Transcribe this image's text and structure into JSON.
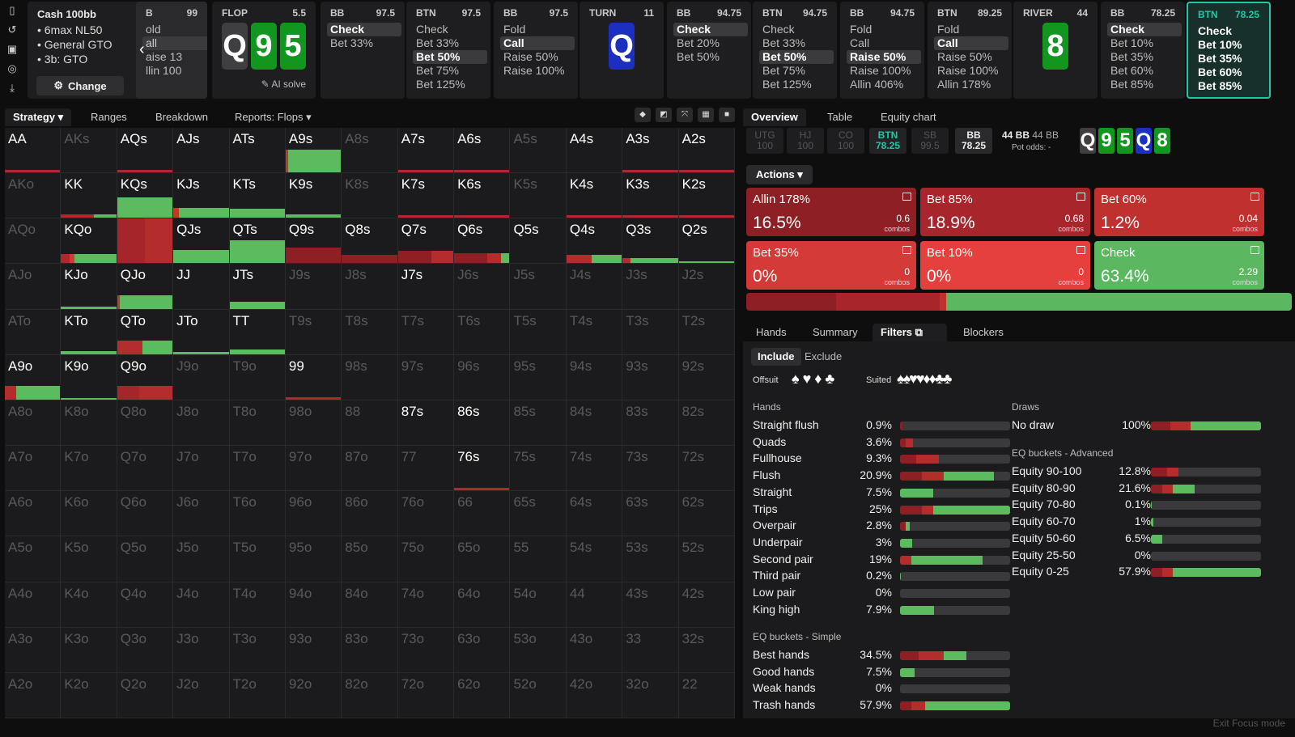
{
  "topbar": {
    "cash": {
      "title": "Cash 100bb",
      "items": [
        "6max NL50",
        "General GTO",
        "3b: GTO"
      ],
      "change_label": "Change"
    },
    "prev": {
      "pos": "B",
      "stack": "99",
      "lines": [
        "old",
        "all",
        "aise 13",
        "llin 100"
      ]
    },
    "flop": {
      "label": "FLOP",
      "pot": "5.5",
      "ai_label": "AI solve"
    },
    "steps": [
      {
        "pos": "BB",
        "stack": "97.5",
        "acts": [
          "Check",
          "Bet 33%"
        ],
        "sel": 0
      },
      {
        "pos": "BTN",
        "stack": "97.5",
        "acts": [
          "Check",
          "Bet 33%",
          "Bet 50%",
          "Bet 75%",
          "Bet 125%"
        ],
        "sel": 2
      },
      {
        "pos": "BB",
        "stack": "97.5",
        "acts": [
          "Fold",
          "Call",
          "Raise 50%",
          "Raise 100%"
        ],
        "sel": 1
      },
      {
        "pos": "TURN",
        "stack": "11",
        "acts": [],
        "sel": -1
      },
      {
        "pos": "BB",
        "stack": "94.75",
        "acts": [
          "Check",
          "Bet 20%",
          "Bet 50%"
        ],
        "sel": 0
      },
      {
        "pos": "BTN",
        "stack": "94.75",
        "acts": [
          "Check",
          "Bet 33%",
          "Bet 50%",
          "Bet 75%",
          "Bet 125%"
        ],
        "sel": 2
      },
      {
        "pos": "BB",
        "stack": "94.75",
        "acts": [
          "Fold",
          "Call",
          "Raise 50%",
          "Raise 100%",
          "Allin 406%"
        ],
        "sel": 2
      },
      {
        "pos": "BTN",
        "stack": "89.25",
        "acts": [
          "Fold",
          "Call",
          "Raise 50%",
          "Raise 100%",
          "Allin 178%"
        ],
        "sel": 1
      },
      {
        "pos": "RIVER",
        "stack": "44",
        "acts": [],
        "sel": -1
      },
      {
        "pos": "BB",
        "stack": "78.25",
        "acts": [
          "Check",
          "Bet 10%",
          "Bet 35%",
          "Bet 60%",
          "Bet 85%"
        ],
        "sel": 0
      },
      {
        "pos": "BTN",
        "stack": "78.25",
        "acts": [
          "Check",
          "Bet 10%",
          "Bet 35%",
          "Bet 60%",
          "Bet 85%"
        ],
        "sel": -2
      }
    ],
    "flop_cards": [
      "Q",
      "9",
      "5"
    ],
    "turn_card": "Q",
    "river_card": "8"
  },
  "left_tabs": {
    "strategy": "Strategy",
    "ranges": "Ranges",
    "breakdown": "Breakdown",
    "reports": "Reports: Flops"
  },
  "grid": {
    "ranks": [
      "A",
      "K",
      "Q",
      "J",
      "T",
      "9",
      "8",
      "7",
      "6",
      "5",
      "4",
      "3",
      "2"
    ],
    "active": [
      "AA",
      "AQs",
      "AJs",
      "ATs",
      "A9s",
      "A7s",
      "A6s",
      "A4s",
      "A3s",
      "A2s",
      "KK",
      "KQs",
      "KJs",
      "KTs",
      "K9s",
      "K7s",
      "K6s",
      "K4s",
      "K3s",
      "K2s",
      "KQo",
      "QQ",
      "QJs",
      "QTs",
      "Q9s",
      "Q8s",
      "Q7s",
      "Q6s",
      "Q5s",
      "Q4s",
      "Q3s",
      "Q2s",
      "KJo",
      "QJo",
      "JJ",
      "JTs",
      "J7s",
      "KTo",
      "QTo",
      "JTo",
      "TT",
      "A9o",
      "K9o",
      "Q9o",
      "99",
      "87s",
      "86s",
      "76s"
    ],
    "bars": {
      "A9s": [
        [
          0.05,
          "#c0392b",
          0.5
        ],
        [
          0.95,
          "#5cba5f",
          0.5
        ]
      ],
      "A7s": [
        [
          1,
          "#b0282d",
          0.05
        ]
      ],
      "A6s": [
        [
          1,
          "#b0282d",
          0.05
        ]
      ],
      "A3s": [
        [
          1,
          "#b0282d",
          0.05
        ]
      ],
      "A2s": [
        [
          1,
          "#b0282d",
          0.05
        ]
      ],
      "AA": [
        [
          1,
          "#b0282d",
          0.05
        ]
      ],
      "AQs": [
        [
          1,
          "#b0282d",
          0.05
        ]
      ],
      "KK": [
        [
          0.6,
          "#b0282d",
          0.08
        ],
        [
          0.4,
          "#5cba5f",
          0.08
        ]
      ],
      "KQs": [
        [
          1,
          "#5cba5f",
          0.45
        ]
      ],
      "KJs": [
        [
          0.1,
          "#c0392b",
          0.22
        ],
        [
          0.9,
          "#5cba5f",
          0.22
        ]
      ],
      "KTs": [
        [
          1,
          "#5cba5f",
          0.2
        ]
      ],
      "K9s": [
        [
          1,
          "#5cba5f",
          0.07
        ]
      ],
      "K7s": [
        [
          1,
          "#b0282d",
          0.05
        ]
      ],
      "K6s": [
        [
          1,
          "#b0282d",
          0.05
        ]
      ],
      "K4s": [
        [
          1,
          "#b0282d",
          0.05
        ]
      ],
      "K3s": [
        [
          1,
          "#b0282d",
          0.05
        ]
      ],
      "K2s": [
        [
          1,
          "#b0282d",
          0.05
        ]
      ],
      "KQo": [
        [
          0.15,
          "#b0282d",
          0.2
        ],
        [
          0.1,
          "#d03a3a",
          0.2
        ],
        [
          0.75,
          "#5cba5f",
          0.2
        ]
      ],
      "QQ": [
        [
          0.5,
          "#a5252a",
          1
        ],
        [
          0.5,
          "#b32d2d",
          1
        ]
      ],
      "QJs": [
        [
          1,
          "#5cba5f",
          0.3
        ]
      ],
      "QTs": [
        [
          1,
          "#5cba5f",
          0.5
        ]
      ],
      "Q9s": [
        [
          1,
          "#8e2024",
          0.35
        ]
      ],
      "Q8s": [
        [
          1,
          "#8e2024",
          0.18
        ]
      ],
      "Q7s": [
        [
          0.6,
          "#8e2024",
          0.28
        ],
        [
          0.4,
          "#b32d2d",
          0.28
        ]
      ],
      "Q6s": [
        [
          0.6,
          "#8e2024",
          0.22
        ],
        [
          0.25,
          "#b32d2d",
          0.22
        ],
        [
          0.15,
          "#5cba5f",
          0.22
        ]
      ],
      "Q4s": [
        [
          0.45,
          "#b32d2d",
          0.18
        ],
        [
          0.55,
          "#5cba5f",
          0.18
        ]
      ],
      "Q3s": [
        [
          0.15,
          "#b32d2d",
          0.12
        ],
        [
          0.85,
          "#5cba5f",
          0.12
        ]
      ],
      "Q2s": [
        [
          1,
          "#5cba5f",
          0.05
        ]
      ],
      "KJo": [
        [
          1,
          "#5cba5f",
          0.05
        ]
      ],
      "QJo": [
        [
          0.05,
          "#c0392b",
          0.3
        ],
        [
          0.95,
          "#5cba5f",
          0.3
        ]
      ],
      "JTs": [
        [
          1,
          "#5cba5f",
          0.15
        ]
      ],
      "KTo": [
        [
          1,
          "#5cba5f",
          0.06
        ]
      ],
      "QTo": [
        [
          0.45,
          "#b32d2d",
          0.3
        ],
        [
          0.55,
          "#5cba5f",
          0.3
        ]
      ],
      "JTo": [
        [
          1,
          "#5cba5f",
          0.05
        ]
      ],
      "TT": [
        [
          1,
          "#5cba5f",
          0.1
        ]
      ],
      "A9o": [
        [
          0.2,
          "#b32d2d",
          0.3
        ],
        [
          0.8,
          "#5cba5f",
          0.3
        ]
      ],
      "K9o": [
        [
          1,
          "#5cba5f",
          0.04
        ]
      ],
      "Q9o": [
        [
          0.4,
          "#a5252a",
          0.3
        ],
        [
          0.6,
          "#b32d2d",
          0.3
        ]
      ],
      "99": [
        [
          1,
          "#b0282d",
          0.06
        ]
      ],
      "76s": [
        [
          1,
          "#b0282d",
          0.05
        ]
      ]
    }
  },
  "right_tabs": {
    "overview": "Overview",
    "table": "Table",
    "equity": "Equity chart"
  },
  "players": [
    {
      "pos": "UTG",
      "stack": "100",
      "state": "off"
    },
    {
      "pos": "HJ",
      "stack": "100",
      "state": "off"
    },
    {
      "pos": "CO",
      "stack": "100",
      "state": "off"
    },
    {
      "pos": "BTN",
      "stack": "78.25",
      "state": "on"
    },
    {
      "pos": "SB",
      "stack": "99.5",
      "state": "off"
    },
    {
      "pos": "BB",
      "stack": "78.25",
      "state": "bb"
    }
  ],
  "pot": {
    "line1": "44 BB",
    "line1b": "44 BB",
    "odds_label": "Pot odds:",
    "odds_val": "-"
  },
  "board": [
    {
      "r": "Q",
      "c": "#3f3f42"
    },
    {
      "r": "9",
      "c": "#12961f"
    },
    {
      "r": "5",
      "c": "#12961f"
    },
    {
      "r": "Q",
      "c": "#1c2fbf"
    },
    {
      "r": "8",
      "c": "#12961f"
    }
  ],
  "actions_label": "Actions",
  "action_boxes": [
    {
      "name": "Allin 178%",
      "pct": "16.5%",
      "combos": "0.6",
      "combos_label": "combos",
      "color": "#8e1f24"
    },
    {
      "name": "Bet 85%",
      "pct": "18.9%",
      "combos": "0.68",
      "combos_label": "combos",
      "color": "#a8262b"
    },
    {
      "name": "Bet 60%",
      "pct": "1.2%",
      "combos": "0.04",
      "combos_label": "combos",
      "color": "#c0302f"
    },
    {
      "name": "Bet 35%",
      "pct": "0%",
      "combos": "0",
      "combos_label": "combos",
      "color": "#d43a37"
    },
    {
      "name": "Bet 10%",
      "pct": "0%",
      "combos": "0",
      "combos_label": "combos",
      "color": "#e5403d"
    },
    {
      "name": "Check",
      "pct": "63.4%",
      "combos": "2.29",
      "combos_label": "combos",
      "color": "#5cb860"
    }
  ],
  "stackbar": [
    [
      16.5,
      "#8e1f24"
    ],
    [
      18.9,
      "#a8262b"
    ],
    [
      1.2,
      "#c0302f"
    ],
    [
      63.4,
      "#5cb860"
    ]
  ],
  "bottom_tabs": {
    "hands": "Hands",
    "summary": "Summary",
    "filters": "Filters",
    "blockers": "Blockers"
  },
  "filters": {
    "include": "Include",
    "exclude": "Exclude",
    "offsuit": "Offsuit",
    "suited": "Suited",
    "hands_title": "Hands",
    "draws_title": "Draws",
    "eqadv_title": "EQ buckets - Advanced",
    "eqsimple_title": "EQ buckets - Simple",
    "hands": [
      {
        "k": "Straight flush",
        "v": "0.9%",
        "b": [
          [
            0.02,
            "#8e1f24"
          ]
        ]
      },
      {
        "k": "Quads",
        "v": "3.6%",
        "b": [
          [
            0.05,
            "#8e1f24"
          ],
          [
            0.07,
            "#b32d2d"
          ]
        ]
      },
      {
        "k": "Fullhouse",
        "v": "9.3%",
        "b": [
          [
            0.15,
            "#8e1f24"
          ],
          [
            0.2,
            "#b32d2d"
          ]
        ]
      },
      {
        "k": "Flush",
        "v": "20.9%",
        "b": [
          [
            0.2,
            "#8e1f24"
          ],
          [
            0.2,
            "#b32d2d"
          ],
          [
            0.45,
            "#5cba5f"
          ]
        ]
      },
      {
        "k": "Straight",
        "v": "7.5%",
        "b": [
          [
            0.3,
            "#5cba5f"
          ]
        ]
      },
      {
        "k": "Trips",
        "v": "25%",
        "b": [
          [
            0.2,
            "#8e1f24"
          ],
          [
            0.1,
            "#b32d2d"
          ],
          [
            0.7,
            "#5cba5f"
          ]
        ]
      },
      {
        "k": "Overpair",
        "v": "2.8%",
        "b": [
          [
            0.05,
            "#8e1f24"
          ],
          [
            0.04,
            "#5cba5f"
          ]
        ]
      },
      {
        "k": "Underpair",
        "v": "3%",
        "b": [
          [
            0.11,
            "#5cba5f"
          ]
        ]
      },
      {
        "k": "Second pair",
        "v": "19%",
        "b": [
          [
            0.1,
            "#b32d2d"
          ],
          [
            0.65,
            "#5cba5f"
          ]
        ]
      },
      {
        "k": "Third pair",
        "v": "0.2%",
        "b": [
          [
            0.01,
            "#5cba5f"
          ]
        ]
      },
      {
        "k": "Low pair",
        "v": "0%",
        "b": []
      },
      {
        "k": "King high",
        "v": "7.9%",
        "b": [
          [
            0.31,
            "#5cba5f"
          ]
        ]
      }
    ],
    "draws": [
      {
        "k": "No draw",
        "v": "100%",
        "b": [
          [
            0.18,
            "#8e1f24"
          ],
          [
            0.18,
            "#b32d2d"
          ],
          [
            0.64,
            "#5cba5f"
          ]
        ]
      }
    ],
    "eqadv": [
      {
        "k": "Equity 90-100",
        "v": "12.8%",
        "b": [
          [
            0.15,
            "#8e1f24"
          ],
          [
            0.1,
            "#b32d2d"
          ]
        ]
      },
      {
        "k": "Equity 80-90",
        "v": "21.6%",
        "b": [
          [
            0.1,
            "#8e1f24"
          ],
          [
            0.1,
            "#b32d2d"
          ],
          [
            0.2,
            "#5cba5f"
          ]
        ]
      },
      {
        "k": "Equity 70-80",
        "v": "0.1%",
        "b": [
          [
            0.01,
            "#5cba5f"
          ]
        ]
      },
      {
        "k": "Equity 60-70",
        "v": "1%",
        "b": [
          [
            0.02,
            "#5cba5f"
          ]
        ]
      },
      {
        "k": "Equity 50-60",
        "v": "6.5%",
        "b": [
          [
            0.1,
            "#5cba5f"
          ]
        ]
      },
      {
        "k": "Equity 25-50",
        "v": "0%",
        "b": []
      },
      {
        "k": "Equity 0-25",
        "v": "57.9%",
        "b": [
          [
            0.1,
            "#8e1f24"
          ],
          [
            0.1,
            "#b32d2d"
          ],
          [
            0.8,
            "#5cba5f"
          ]
        ]
      }
    ],
    "eqsimple": [
      {
        "k": "Best hands",
        "v": "34.5%",
        "b": [
          [
            0.17,
            "#8e1f24"
          ],
          [
            0.23,
            "#b32d2d"
          ],
          [
            0.2,
            "#5cba5f"
          ]
        ]
      },
      {
        "k": "Good hands",
        "v": "7.5%",
        "b": [
          [
            0.13,
            "#5cba5f"
          ]
        ]
      },
      {
        "k": "Weak hands",
        "v": "0%",
        "b": []
      },
      {
        "k": "Trash hands",
        "v": "57.9%",
        "b": [
          [
            0.1,
            "#8e1f24"
          ],
          [
            0.13,
            "#b32d2d"
          ],
          [
            0.77,
            "#5cba5f"
          ]
        ]
      }
    ]
  },
  "exit_focus": "Exit Focus mode"
}
